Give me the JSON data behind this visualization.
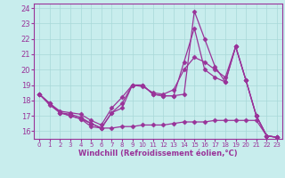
{
  "xlabel": "Windchill (Refroidissement éolien,°C)",
  "xlim": [
    -0.5,
    23.5
  ],
  "ylim": [
    15.5,
    24.3
  ],
  "yticks": [
    16,
    17,
    18,
    19,
    20,
    21,
    22,
    23,
    24
  ],
  "xticks": [
    0,
    1,
    2,
    3,
    4,
    5,
    6,
    7,
    8,
    9,
    10,
    11,
    12,
    13,
    14,
    15,
    16,
    17,
    18,
    19,
    20,
    21,
    22,
    23
  ],
  "background_color": "#c8eded",
  "grid_color": "#a8d8d8",
  "line_color": "#993399",
  "marker": "D",
  "markersize": 2.5,
  "linewidth": 0.9,
  "series": [
    {
      "x": [
        0,
        1,
        2,
        3,
        4,
        5,
        6,
        7,
        8,
        9,
        10,
        11,
        12,
        13,
        14,
        15,
        16,
        17,
        18,
        19,
        20,
        21,
        22,
        23
      ],
      "y": [
        18.4,
        17.8,
        17.2,
        17.0,
        16.8,
        16.3,
        16.2,
        17.2,
        17.5,
        19.0,
        19.0,
        18.4,
        18.3,
        18.3,
        18.4,
        23.8,
        22.0,
        20.2,
        19.2,
        21.5,
        19.3,
        17.0,
        15.7,
        15.6
      ]
    },
    {
      "x": [
        0,
        1,
        2,
        3,
        4,
        5,
        6,
        7,
        8,
        9,
        10,
        11,
        12,
        13,
        14,
        15,
        16,
        17,
        18,
        19,
        20,
        21,
        22,
        23
      ],
      "y": [
        18.4,
        17.8,
        17.2,
        17.1,
        16.9,
        16.5,
        16.2,
        17.2,
        17.8,
        19.0,
        19.0,
        18.4,
        18.3,
        18.3,
        20.5,
        22.7,
        20.0,
        19.5,
        19.2,
        21.5,
        19.3,
        17.0,
        15.7,
        15.6
      ]
    },
    {
      "x": [
        0,
        1,
        2,
        3,
        4,
        5,
        6,
        7,
        8,
        9,
        10,
        11,
        12,
        13,
        14,
        15,
        16,
        17,
        18,
        19,
        20,
        21,
        22,
        23
      ],
      "y": [
        18.4,
        17.8,
        17.3,
        17.2,
        17.1,
        16.7,
        16.4,
        17.5,
        18.2,
        19.0,
        18.9,
        18.5,
        18.4,
        18.7,
        20.0,
        20.8,
        20.5,
        20.0,
        19.5,
        21.5,
        19.3,
        17.0,
        15.7,
        15.6
      ]
    },
    {
      "x": [
        0,
        1,
        2,
        3,
        4,
        5,
        6,
        7,
        8,
        9,
        10,
        11,
        12,
        13,
        14,
        15,
        16,
        17,
        18,
        19,
        20,
        21,
        22,
        23
      ],
      "y": [
        18.4,
        17.7,
        17.2,
        17.0,
        16.8,
        16.5,
        16.2,
        16.2,
        16.3,
        16.3,
        16.4,
        16.4,
        16.4,
        16.5,
        16.6,
        16.6,
        16.6,
        16.7,
        16.7,
        16.7,
        16.7,
        16.7,
        15.7,
        15.6
      ]
    }
  ]
}
